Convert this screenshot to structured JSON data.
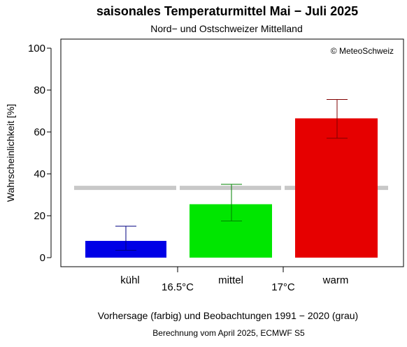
{
  "chart_data": {
    "type": "bar",
    "title": "saisonales Temperaturmittel Mai − Juli 2025",
    "subtitle": "Nord− und Ostschweizer Mittelland",
    "ylabel": "Wahrscheinlichkeit [%]",
    "ylim": [
      0,
      100
    ],
    "yticks": [
      0,
      20,
      40,
      60,
      80,
      100
    ],
    "categories": [
      "kühl",
      "mittel",
      "warm"
    ],
    "thresholds": [
      "16.5°C",
      "17°C"
    ],
    "series": [
      {
        "name": "Vorhersage",
        "values": [
          8,
          25.5,
          66.5
        ],
        "err_low": [
          3.5,
          17.5,
          57
        ],
        "err_high": [
          15,
          35,
          75.5
        ],
        "colors": [
          "#0000e6",
          "#00e600",
          "#e60000"
        ]
      },
      {
        "name": "Beobachtungen 1991 − 2020",
        "values": [
          33.3,
          33.3,
          33.3
        ],
        "color": "#c8c8c8"
      }
    ],
    "copyright": "© MeteoSchweiz",
    "caption": "Vorhersage (farbig) und Beobachtungen 1991 − 2020 (grau)",
    "note": "Berechnung vom April 2025, ECMWF S5"
  }
}
